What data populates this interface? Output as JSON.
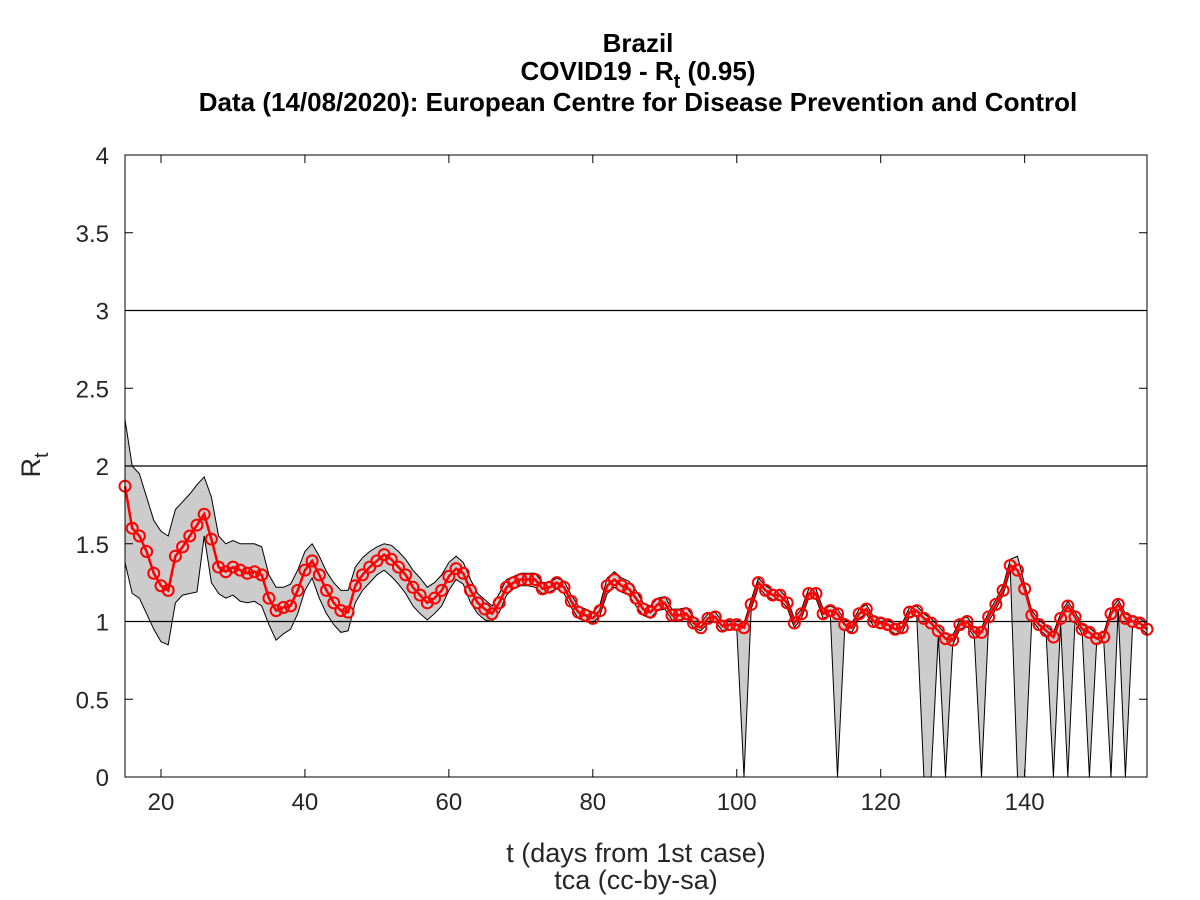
{
  "chart_data": {
    "type": "line",
    "title_lines": [
      {
        "text": "Brazil"
      },
      {
        "pre": "COVID19 - R",
        "sub": "t",
        "post": " (0.95)"
      },
      {
        "text": "Data (14/08/2020): European Centre for Disease Prevention and Control"
      }
    ],
    "xlabel": "t (days from 1st case)",
    "caption": "tca (cc-by-sa)",
    "ylabel_main": "R",
    "ylabel_sub": "t",
    "xlim": [
      15,
      157
    ],
    "ylim": [
      0,
      4
    ],
    "xticks": [
      20,
      40,
      60,
      80,
      100,
      120,
      140
    ],
    "yticks": [
      0,
      0.5,
      1,
      1.5,
      2,
      2.5,
      3,
      3.5,
      4
    ],
    "reference_lines": [
      1,
      2,
      3
    ],
    "grid": false,
    "colors": {
      "series": "#ff0000",
      "band_fill": "#cccccc",
      "band_edge": "#000000",
      "axes": "#000000"
    },
    "series": [
      {
        "x": [
          15,
          16,
          17,
          18,
          19,
          20,
          21,
          22,
          23,
          24,
          25,
          26,
          27,
          28,
          29,
          30,
          31,
          32,
          33,
          34,
          35,
          36,
          37,
          38,
          39,
          40,
          41,
          42,
          43,
          44,
          45,
          46,
          47,
          48,
          49,
          50,
          51,
          52,
          53,
          54,
          55,
          56,
          57,
          58,
          59,
          60,
          61,
          62,
          63,
          64,
          65,
          66,
          67,
          68,
          69,
          70,
          71,
          72,
          73,
          74,
          75,
          76,
          77,
          78,
          79,
          80,
          81,
          82,
          83,
          84,
          85,
          86,
          87,
          88,
          89,
          90,
          91,
          92,
          93,
          94,
          95,
          96,
          97,
          98,
          99,
          100,
          101,
          102,
          103,
          104,
          105,
          106,
          107,
          108,
          109,
          110,
          111,
          112,
          113,
          114,
          115,
          116,
          117,
          118,
          119,
          120,
          121,
          122,
          123,
          124,
          125,
          126,
          127,
          128,
          129,
          130,
          131,
          132,
          133,
          134,
          135,
          136,
          137,
          138,
          139,
          140,
          141,
          142,
          143,
          144,
          145,
          146,
          147,
          148,
          149,
          150,
          151,
          152,
          153,
          154,
          155,
          156,
          157
        ],
        "values": [
          1.87,
          1.6,
          1.55,
          1.45,
          1.31,
          1.23,
          1.2,
          1.42,
          1.48,
          1.55,
          1.62,
          1.69,
          1.53,
          1.35,
          1.32,
          1.35,
          1.33,
          1.31,
          1.32,
          1.3,
          1.15,
          1.07,
          1.09,
          1.1,
          1.2,
          1.33,
          1.39,
          1.3,
          1.2,
          1.12,
          1.07,
          1.06,
          1.23,
          1.3,
          1.35,
          1.39,
          1.43,
          1.4,
          1.35,
          1.3,
          1.22,
          1.17,
          1.12,
          1.15,
          1.2,
          1.29,
          1.34,
          1.31,
          1.2,
          1.12,
          1.08,
          1.05,
          1.12,
          1.22,
          1.25,
          1.27,
          1.27,
          1.27,
          1.21,
          1.22,
          1.25,
          1.22,
          1.13,
          1.06,
          1.04,
          1.02,
          1.07,
          1.23,
          1.27,
          1.23,
          1.21,
          1.15,
          1.08,
          1.06,
          1.11,
          1.12,
          1.04,
          1.04,
          1.05,
          0.99,
          0.96,
          1.02,
          1.03,
          0.97,
          0.98,
          0.98,
          0.96,
          1.11,
          1.25,
          1.2,
          1.17,
          1.17,
          1.12,
          0.99,
          1.05,
          1.18,
          1.18,
          1.05,
          1.07,
          1.05,
          0.98,
          0.96,
          1.05,
          1.08,
          1.0,
          0.99,
          0.98,
          0.95,
          0.96,
          1.06,
          1.07,
          1.02,
          0.99,
          0.94,
          0.89,
          0.88,
          0.98,
          1.0,
          0.93,
          0.93,
          1.03,
          1.11,
          1.2,
          1.36,
          1.33,
          1.21,
          1.04,
          0.98,
          0.94,
          0.9,
          1.02,
          1.1,
          1.03,
          0.95,
          0.93,
          0.89,
          0.9,
          1.05,
          1.11,
          1.02,
          1.0,
          0.99,
          0.95
        ],
        "lower": [
          1.38,
          1.18,
          1.15,
          1.05,
          0.95,
          0.87,
          0.85,
          1.12,
          1.17,
          1.18,
          1.19,
          1.55,
          1.25,
          1.18,
          1.15,
          1.17,
          1.13,
          1.12,
          1.13,
          1.1,
          0.98,
          0.88,
          0.92,
          0.95,
          1.05,
          1.2,
          1.28,
          1.15,
          1.05,
          0.98,
          0.93,
          0.94,
          1.12,
          1.2,
          1.25,
          1.3,
          1.33,
          1.29,
          1.24,
          1.18,
          1.1,
          1.05,
          1.01,
          1.05,
          1.1,
          1.2,
          1.27,
          1.24,
          1.12,
          1.05,
          1.01,
          1.0,
          1.06,
          1.17,
          1.21,
          1.23,
          1.23,
          1.22,
          1.18,
          1.19,
          1.21,
          1.18,
          1.09,
          1.02,
          1.0,
          0.99,
          1.04,
          1.18,
          1.22,
          1.19,
          1.17,
          1.1,
          1.04,
          1.02,
          1.07,
          1.08,
          1.01,
          1.01,
          1.02,
          0.96,
          0.94,
          0.99,
          1.0,
          0.94,
          0.95,
          0.95,
          0.0,
          1.08,
          1.22,
          1.17,
          1.14,
          1.14,
          1.09,
          0.96,
          1.02,
          1.15,
          1.15,
          1.02,
          1.04,
          0.0,
          0.95,
          0.93,
          1.02,
          1.05,
          0.97,
          0.96,
          0.95,
          0.92,
          0.93,
          1.03,
          1.04,
          0.0,
          0.0,
          0.91,
          0.0,
          0.85,
          0.95,
          0.97,
          0.9,
          0.0,
          1.0,
          1.08,
          1.17,
          1.33,
          0.0,
          0.0,
          1.01,
          0.95,
          0.91,
          0.0,
          0.99,
          0.0,
          1.0,
          0.92,
          0.0,
          0.86,
          0.87,
          0.0,
          1.08,
          0.0,
          0.97,
          0.96,
          0.92
        ],
        "upper": [
          2.3,
          2.0,
          1.95,
          1.8,
          1.65,
          1.58,
          1.55,
          1.72,
          1.77,
          1.82,
          1.88,
          1.93,
          1.8,
          1.55,
          1.5,
          1.52,
          1.5,
          1.5,
          1.5,
          1.48,
          1.3,
          1.22,
          1.22,
          1.24,
          1.33,
          1.45,
          1.5,
          1.42,
          1.32,
          1.25,
          1.2,
          1.2,
          1.35,
          1.41,
          1.45,
          1.48,
          1.5,
          1.49,
          1.45,
          1.4,
          1.33,
          1.28,
          1.22,
          1.25,
          1.3,
          1.38,
          1.42,
          1.38,
          1.27,
          1.18,
          1.14,
          1.1,
          1.18,
          1.27,
          1.29,
          1.31,
          1.31,
          1.31,
          1.25,
          1.25,
          1.28,
          1.26,
          1.17,
          1.1,
          1.08,
          1.06,
          1.11,
          1.28,
          1.32,
          1.28,
          1.26,
          1.2,
          1.12,
          1.1,
          1.15,
          1.16,
          1.08,
          1.08,
          1.09,
          1.03,
          0.99,
          1.05,
          1.06,
          1.0,
          1.01,
          1.01,
          0.99,
          1.14,
          1.28,
          1.23,
          1.2,
          1.2,
          1.15,
          1.02,
          1.08,
          1.21,
          1.21,
          1.08,
          1.1,
          1.08,
          1.01,
          0.99,
          1.08,
          1.11,
          1.03,
          1.02,
          1.01,
          0.98,
          0.99,
          1.09,
          1.1,
          1.05,
          1.02,
          0.97,
          0.92,
          0.91,
          1.01,
          1.03,
          0.96,
          0.96,
          1.06,
          1.14,
          1.23,
          1.4,
          1.42,
          1.24,
          1.07,
          1.01,
          0.97,
          0.93,
          1.05,
          1.13,
          1.06,
          0.98,
          0.96,
          0.92,
          0.93,
          1.08,
          1.14,
          1.05,
          1.03,
          1.02,
          0.98
        ]
      }
    ]
  }
}
